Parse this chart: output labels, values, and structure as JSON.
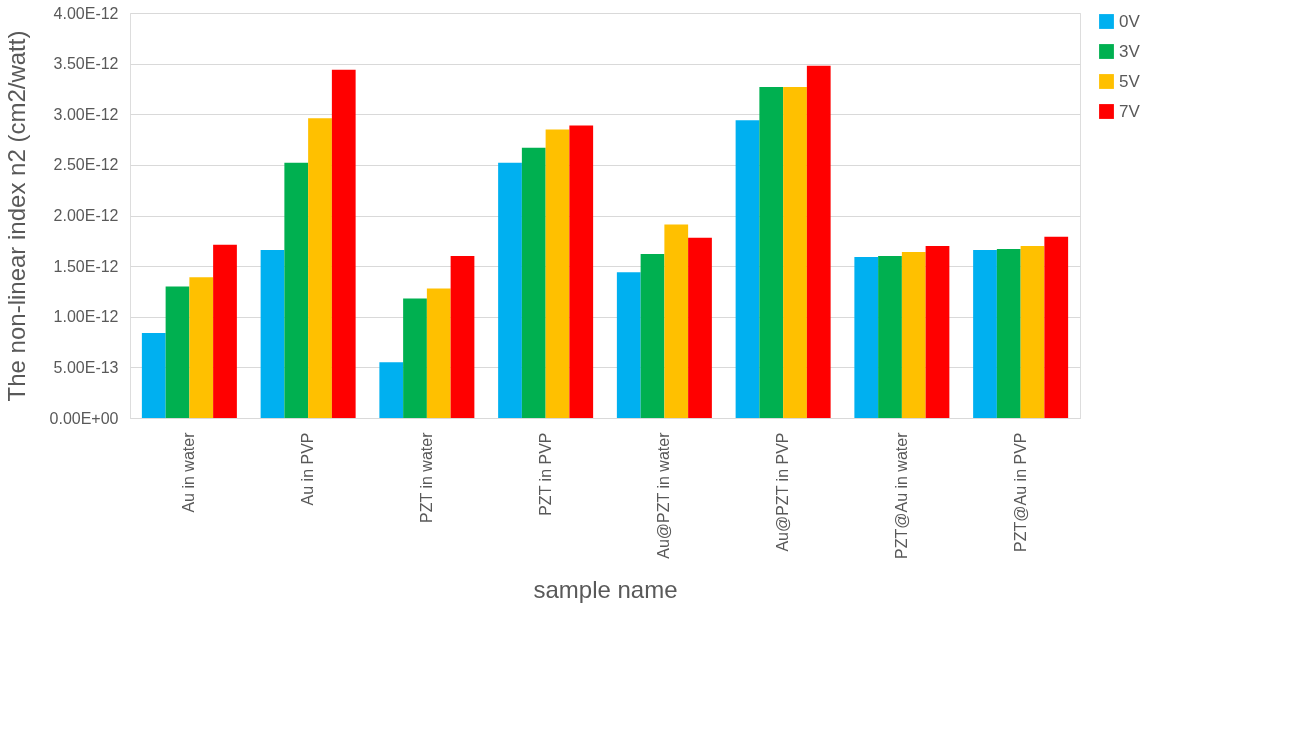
{
  "chart_data": {
    "type": "bar",
    "xlabel": "sample name",
    "ylabel": "The non-linear index n2 (cm2/watt)",
    "categories": [
      "Au in water",
      "Au in PVP",
      "PZT in water",
      "PZT in PVP",
      "Au@PZT in water",
      "Au@PZT in PVP",
      "PZT@Au in water",
      "PZT@Au in PVP"
    ],
    "series": [
      {
        "name": "0V",
        "color": "#00b0f0",
        "values": [
          8.4e-13,
          1.66e-12,
          5.5e-13,
          2.52e-12,
          1.44e-12,
          2.94e-12,
          1.59e-12,
          1.66e-12
        ]
      },
      {
        "name": "3V",
        "color": "#00b050",
        "values": [
          1.3e-12,
          2.52e-12,
          1.18e-12,
          2.67e-12,
          1.62e-12,
          3.27e-12,
          1.6e-12,
          1.67e-12
        ]
      },
      {
        "name": "5V",
        "color": "#ffc000",
        "values": [
          1.39e-12,
          2.96e-12,
          1.28e-12,
          2.85e-12,
          1.91e-12,
          3.27e-12,
          1.64e-12,
          1.7e-12
        ]
      },
      {
        "name": "7V",
        "color": "#ff0000",
        "values": [
          1.71e-12,
          3.44e-12,
          1.6e-12,
          2.89e-12,
          1.78e-12,
          3.48e-12,
          1.7e-12,
          1.79e-12
        ]
      }
    ],
    "ylim": [
      0,
      4e-12
    ],
    "yticks": [
      {
        "value": 0,
        "label": "0.00E+00"
      },
      {
        "value": 5e-13,
        "label": "5.00E-13"
      },
      {
        "value": 1e-12,
        "label": "1.00E-12"
      },
      {
        "value": 1.5e-12,
        "label": "1.50E-12"
      },
      {
        "value": 2e-12,
        "label": "2.00E-12"
      },
      {
        "value": 2.5e-12,
        "label": "2.50E-12"
      },
      {
        "value": 3e-12,
        "label": "3.00E-12"
      },
      {
        "value": 3.5e-12,
        "label": "3.50E-12"
      },
      {
        "value": 4e-12,
        "label": "4.00E-12"
      }
    ],
    "grid": "y",
    "legend": "top right"
  }
}
